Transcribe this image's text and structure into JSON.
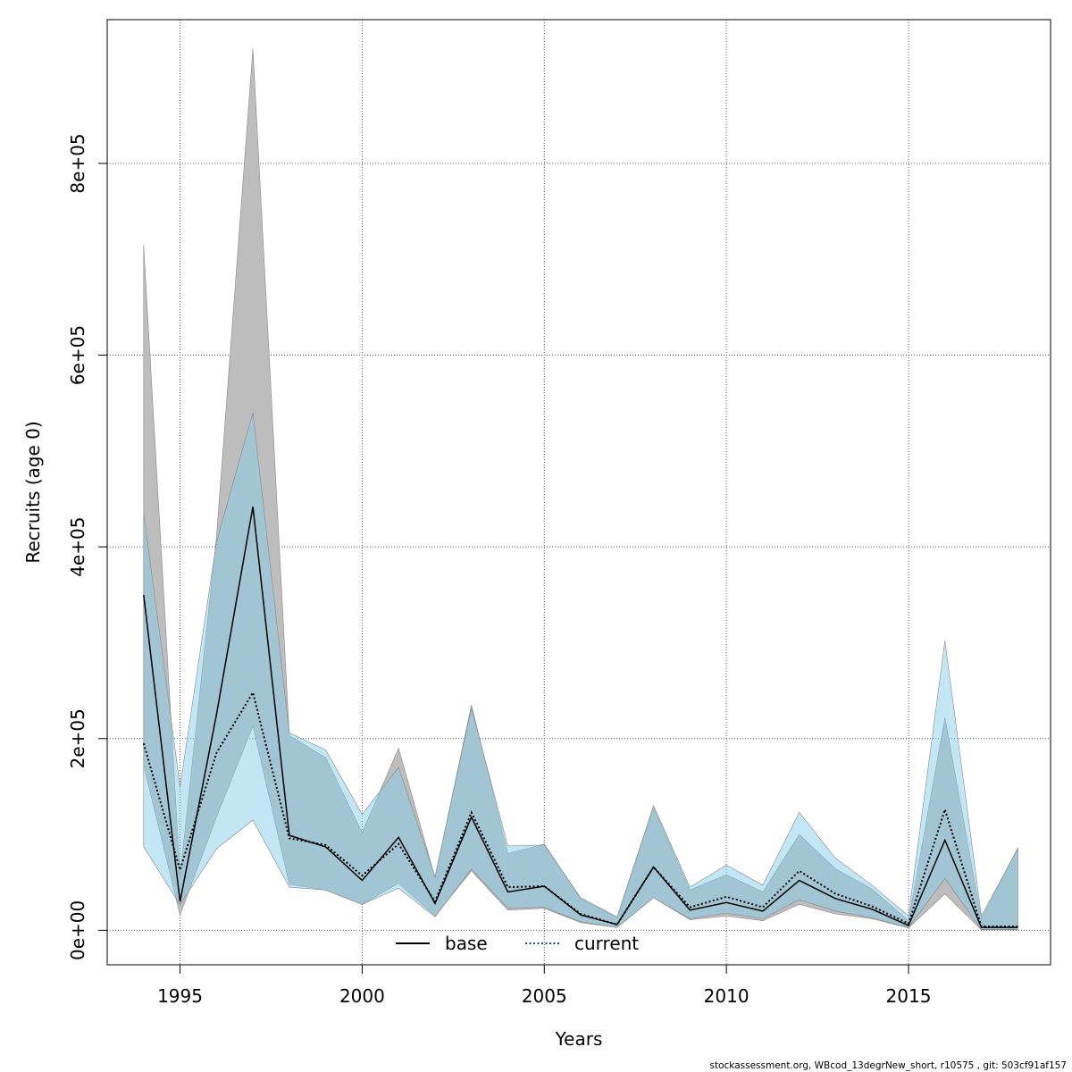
{
  "footer_text": "stockassessment.org, WBcod_13degrNew_short, r10575 , git: 503cf91af157",
  "chart_data": {
    "type": "line",
    "xlabel": "Years",
    "ylabel": "Recruits (age 0)",
    "xlim": [
      1993.0,
      2018.9
    ],
    "ylim": [
      -36000,
      950000
    ],
    "x_ticks": [
      1995,
      2000,
      2005,
      2010,
      2015
    ],
    "y_ticks": [
      0,
      200000,
      400000,
      600000,
      800000
    ],
    "y_tick_labels": [
      "0e+00",
      "2e+05",
      "4e+05",
      "6e+05",
      "8e+05"
    ],
    "grid": true,
    "legend_position": "bottom",
    "x": [
      1994,
      1995,
      1996,
      1997,
      1998,
      1999,
      2000,
      2001,
      2002,
      2003,
      2004,
      2005,
      2006,
      2007,
      2008,
      2009,
      2010,
      2011,
      2012,
      2013,
      2014,
      2015,
      2016,
      2017,
      2018
    ],
    "series": [
      {
        "name": "base",
        "line_color": "#000000",
        "band_color": "#bdbdbd",
        "line_style": "solid",
        "values": [
          350000,
          30000,
          225000,
          442000,
          99000,
          87000,
          52000,
          97000,
          28000,
          118000,
          40000,
          46000,
          16000,
          6000,
          66000,
          21000,
          29000,
          20000,
          52000,
          33000,
          22000,
          5000,
          94000,
          3000,
          3000
        ],
        "lower": [
          172000,
          16000,
          118000,
          213000,
          48000,
          42000,
          27000,
          49000,
          15000,
          62000,
          21000,
          23000,
          8000,
          3000,
          34000,
          11000,
          15000,
          10000,
          27000,
          17000,
          12000,
          2500,
          38000,
          500,
          500
        ],
        "upper": [
          715000,
          56000,
          410000,
          920000,
          203000,
          180000,
          102000,
          190000,
          55000,
          235000,
          80000,
          90000,
          33000,
          13000,
          128000,
          42000,
          58000,
          40000,
          100000,
          64000,
          43000,
          10000,
          222000,
          12000,
          86000
        ]
      },
      {
        "name": "current",
        "line_color": "#000000",
        "band_color": "#87ceeb",
        "line_style": "dotted",
        "values": [
          195000,
          63000,
          185000,
          248000,
          96000,
          89000,
          57000,
          90000,
          30000,
          123000,
          45000,
          46000,
          17000,
          6000,
          66000,
          24000,
          35000,
          24000,
          62000,
          38000,
          25000,
          7000,
          126000,
          4000,
          4000
        ],
        "lower": [
          87000,
          27000,
          85000,
          115000,
          45000,
          42000,
          27000,
          44000,
          14000,
          64000,
          23000,
          24000,
          9000,
          3000,
          34000,
          12000,
          18000,
          12000,
          32000,
          20000,
          13000,
          3000,
          54000,
          1000,
          1000
        ],
        "upper": [
          435000,
          150000,
          405000,
          540000,
          206000,
          188000,
          121000,
          170000,
          56000,
          232000,
          88000,
          89000,
          34000,
          14000,
          130000,
          45000,
          68000,
          47000,
          123000,
          75000,
          47000,
          15000,
          302000,
          15000,
          85000
        ]
      }
    ]
  }
}
